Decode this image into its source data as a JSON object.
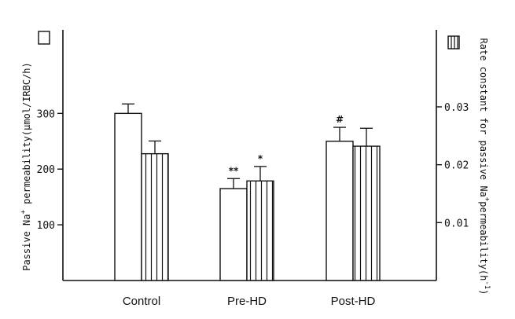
{
  "chart_data": {
    "type": "bar",
    "categories": [
      "Control",
      "Pre-HD",
      "Post-HD"
    ],
    "series": [
      {
        "axis": "left",
        "pattern": "open",
        "values": [
          300,
          165,
          250
        ],
        "error": [
          17,
          18,
          25
        ],
        "annotations": [
          "",
          "**",
          "#"
        ]
      },
      {
        "axis": "right",
        "pattern": "vertical-hatch",
        "values": [
          0.0219,
          0.0172,
          0.0232
        ],
        "error": [
          0.0022,
          0.0025,
          0.0031
        ],
        "annotations": [
          "",
          "*",
          ""
        ]
      }
    ],
    "y_left": {
      "label_prefix": "Passive Na",
      "label_sup": "+",
      "label_suffix": " permeability(μmol/IRBC/h)",
      "ticks": [
        100,
        200,
        300
      ],
      "ylim": [
        0,
        450
      ]
    },
    "y_right": {
      "label_prefix": "Rate constant for passive Na",
      "label_sup": "+",
      "label_mid": "permeability(h",
      "label_sup2": "-1",
      "label_end": ")",
      "ticks": [
        "0.01",
        "0.02",
        "0.03"
      ],
      "tick_values": [
        0.01,
        0.02,
        0.03
      ],
      "ylim": [
        0,
        0.0433
      ]
    },
    "legend": {
      "left": "open-box",
      "right": "hatched-box"
    },
    "grid": false
  }
}
